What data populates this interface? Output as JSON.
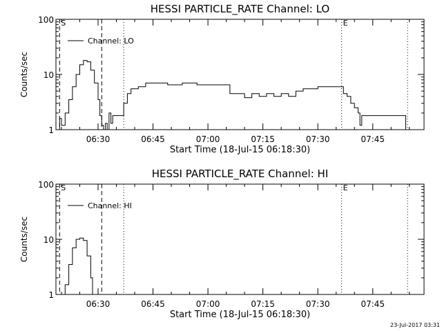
{
  "footer": {
    "timestamp": "23-Jul-2017 03:31"
  },
  "chart_data": [
    {
      "type": "line",
      "title": "HESSI PARTICLE_RATE Channel: LO",
      "xlabel": "Start Time (18-Jul-15 06:18:30)",
      "ylabel": "Counts/sec",
      "y_scale": "log",
      "ylim": [
        1,
        100
      ],
      "xlim": [
        "06:18:30",
        "07:59:00"
      ],
      "x_ticks": [
        "06:30",
        "06:45",
        "07:00",
        "07:15",
        "07:30",
        "07:45"
      ],
      "y_ticks": [
        "1",
        "10",
        "100"
      ],
      "legend": {
        "position": "top-left",
        "label": "Channel: LO"
      },
      "markers": [
        {
          "time": "06:19:30",
          "style": "dashed",
          "label": "S"
        },
        {
          "time": "06:31:00",
          "style": "dashed",
          "label": ""
        },
        {
          "time": "06:37:00",
          "style": "dotted",
          "label": ""
        },
        {
          "time": "07:36:30",
          "style": "dotted",
          "label": "E"
        },
        {
          "time": "07:54:30",
          "style": "dotted",
          "label": ""
        }
      ],
      "series": [
        {
          "points": [
            [
              "06:19:00",
              1
            ],
            [
              "06:19:30",
              1.6
            ],
            [
              "06:20:00",
              1.2
            ],
            [
              "06:21:00",
              2
            ],
            [
              "06:22:00",
              3.5
            ],
            [
              "06:23:00",
              6
            ],
            [
              "06:24:00",
              10
            ],
            [
              "06:25:00",
              15
            ],
            [
              "06:26:00",
              18
            ],
            [
              "06:27:00",
              17
            ],
            [
              "06:28:00",
              12
            ],
            [
              "06:29:00",
              7
            ],
            [
              "06:30:00",
              3.5
            ],
            [
              "06:30:30",
              1.8
            ],
            [
              "06:31:00",
              1.2
            ],
            [
              "06:31:30",
              1
            ],
            [
              "06:32:00",
              1.3
            ],
            [
              "06:32:30",
              1
            ],
            [
              "06:33:00",
              2
            ],
            [
              "06:33:30",
              1.3
            ],
            [
              "06:34:00",
              1.8
            ],
            [
              "06:35:00",
              1.8
            ],
            [
              "06:36:00",
              1.8
            ],
            [
              "06:36:30",
              1.8
            ],
            [
              "06:37:00",
              3
            ],
            [
              "06:38:00",
              4.5
            ],
            [
              "06:39:00",
              5.5
            ],
            [
              "06:41:00",
              6
            ],
            [
              "06:43:00",
              7
            ],
            [
              "06:45:00",
              7
            ],
            [
              "06:47:00",
              7
            ],
            [
              "06:49:00",
              6.5
            ],
            [
              "06:51:00",
              6.5
            ],
            [
              "06:53:00",
              7
            ],
            [
              "06:55:00",
              7
            ],
            [
              "06:57:00",
              6.5
            ],
            [
              "06:59:00",
              6.5
            ],
            [
              "07:01:00",
              6.5
            ],
            [
              "07:03:00",
              6.5
            ],
            [
              "07:05:00",
              6.5
            ],
            [
              "07:06:00",
              4.5
            ],
            [
              "07:08:00",
              4.5
            ],
            [
              "07:10:00",
              3.8
            ],
            [
              "07:12:00",
              4.5
            ],
            [
              "07:14:00",
              4
            ],
            [
              "07:16:00",
              4.5
            ],
            [
              "07:18:00",
              4
            ],
            [
              "07:20:00",
              4.5
            ],
            [
              "07:22:00",
              4
            ],
            [
              "07:24:00",
              5
            ],
            [
              "07:26:00",
              5.5
            ],
            [
              "07:28:00",
              5.5
            ],
            [
              "07:30:00",
              6
            ],
            [
              "07:32:00",
              6
            ],
            [
              "07:34:00",
              6
            ],
            [
              "07:36:30",
              6
            ],
            [
              "07:37:00",
              4.5
            ],
            [
              "07:38:00",
              4
            ],
            [
              "07:39:00",
              3
            ],
            [
              "07:40:00",
              2.5
            ],
            [
              "07:41:00",
              2
            ],
            [
              "07:41:30",
              1.2
            ],
            [
              "07:42:00",
              1.8
            ],
            [
              "07:44:00",
              1.8
            ],
            [
              "07:46:00",
              1.8
            ],
            [
              "07:48:00",
              1.8
            ],
            [
              "07:50:00",
              1.8
            ],
            [
              "07:52:00",
              1.8
            ],
            [
              "07:53:00",
              1.8
            ],
            [
              "07:54:00",
              1
            ]
          ]
        }
      ]
    },
    {
      "type": "line",
      "title": "HESSI PARTICLE_RATE Channel: HI",
      "xlabel": "Start Time (18-Jul-15 06:18:30)",
      "ylabel": "Counts/sec",
      "y_scale": "log",
      "ylim": [
        1,
        100
      ],
      "xlim": [
        "06:18:30",
        "07:59:00"
      ],
      "x_ticks": [
        "06:30",
        "06:45",
        "07:00",
        "07:15",
        "07:30",
        "07:45"
      ],
      "y_ticks": [
        "1",
        "10",
        "100"
      ],
      "legend": {
        "position": "top-left",
        "label": "Channel: HI"
      },
      "markers": [
        {
          "time": "06:19:30",
          "style": "dashed",
          "label": "S"
        },
        {
          "time": "06:31:00",
          "style": "dashed",
          "label": ""
        },
        {
          "time": "06:37:00",
          "style": "dotted",
          "label": ""
        },
        {
          "time": "07:36:30",
          "style": "dotted",
          "label": "E"
        },
        {
          "time": "07:54:30",
          "style": "dotted",
          "label": ""
        }
      ],
      "series": [
        {
          "points": [
            [
              "06:20:30",
              1
            ],
            [
              "06:21:00",
              1.5
            ],
            [
              "06:22:00",
              3.5
            ],
            [
              "06:23:00",
              7
            ],
            [
              "06:24:00",
              10
            ],
            [
              "06:25:00",
              10.5
            ],
            [
              "06:26:00",
              9.5
            ],
            [
              "06:27:00",
              5
            ],
            [
              "06:28:00",
              2
            ],
            [
              "06:28:30",
              1
            ]
          ]
        }
      ]
    }
  ]
}
